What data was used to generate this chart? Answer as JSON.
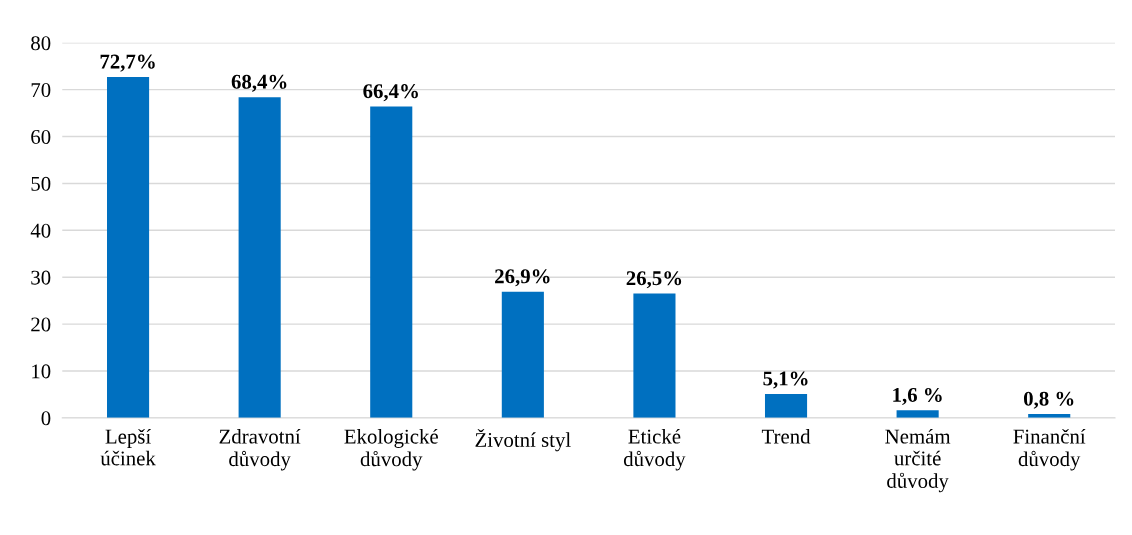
{
  "chart_data": {
    "type": "bar",
    "categories": [
      "Lepší\núčinek",
      "Zdravotní\ndůvody",
      "Ekologické\ndůvody",
      "Životní styl",
      "Etické\ndůvody",
      "Trend",
      "Nemám\nurčité\ndůvody",
      "Finanční\ndůvody"
    ],
    "values": [
      72.7,
      68.4,
      66.4,
      26.9,
      26.5,
      5.1,
      1.6,
      0.8
    ],
    "value_labels": [
      "72,7%",
      "68,4%",
      "66,4%",
      "26,9%",
      "26,5%",
      "5,1%",
      "1,6 %",
      "0,8 %"
    ],
    "color": "#0070c0",
    "ylim": [
      0,
      80
    ],
    "yticks": [
      0,
      10,
      20,
      30,
      40,
      50,
      60,
      70,
      80
    ],
    "grid": "y",
    "legend": false
  }
}
